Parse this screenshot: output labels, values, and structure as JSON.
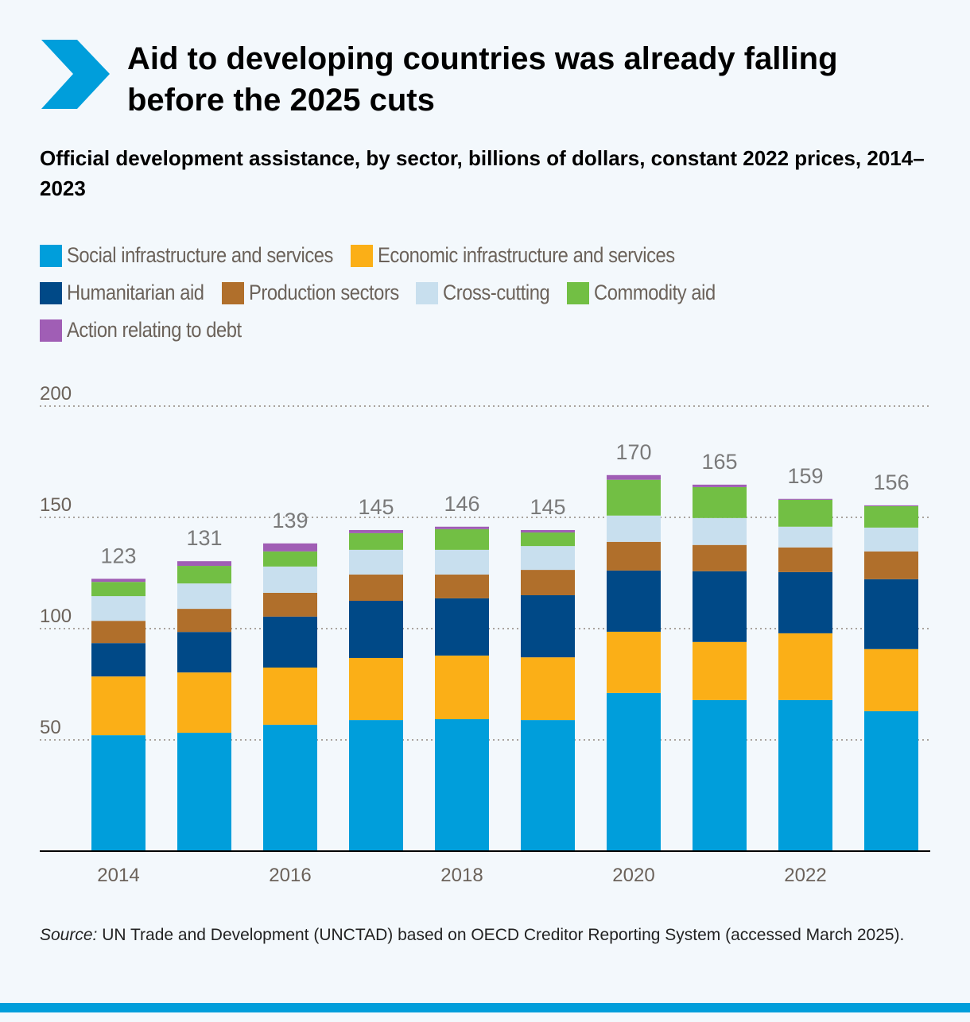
{
  "header": {
    "logo_icon": "chevron-right-icon",
    "title": "Aid to developing countries was already falling before the 2025 cuts",
    "subtitle": "Official development assistance, by sector, billions of dollars, constant 2022 prices, 2014–2023"
  },
  "colors": {
    "accent": "#009edb",
    "gridline": "#a9a39e",
    "axis_text": "#6b625a",
    "total_label": "#7a7a7a"
  },
  "legend": {
    "rows": [
      [
        0,
        1
      ],
      [
        2,
        3,
        4,
        5
      ],
      [
        6
      ]
    ]
  },
  "chart_data": {
    "type": "bar",
    "stacked": true,
    "title": "Official development assistance, by sector, billions of dollars, constant 2022 prices, 2014–2023",
    "xlabel": "",
    "ylabel": "",
    "ylim": [
      0,
      200
    ],
    "yticks": [
      50,
      100,
      150,
      200
    ],
    "grid": true,
    "legend_position": "top",
    "categories": [
      "2014",
      "2015",
      "2016",
      "2017",
      "2018",
      "2019",
      "2020",
      "2021",
      "2022",
      "2023"
    ],
    "xtick_labels": [
      "2014",
      "",
      "2016",
      "",
      "2018",
      "",
      "2020",
      "",
      "2022",
      ""
    ],
    "totals": [
      123,
      131,
      139,
      145,
      146,
      145,
      170,
      165,
      159,
      156
    ],
    "series": [
      {
        "name": "Social infrastructure and services",
        "color": "#009edb",
        "values": [
          52.1,
          53.2,
          56.8,
          58.9,
          59.3,
          58.9,
          71.1,
          67.9,
          67.9,
          62.9
        ]
      },
      {
        "name": "Economic infrastructure and services",
        "color": "#fbaf17",
        "values": [
          26.4,
          27.1,
          25.7,
          27.9,
          28.6,
          28.2,
          27.5,
          26.1,
          30.0,
          27.9
        ]
      },
      {
        "name": "Humanitarian aid",
        "color": "#004987",
        "values": [
          15.0,
          18.2,
          22.9,
          25.7,
          25.7,
          27.9,
          27.5,
          31.8,
          27.5,
          31.4
        ]
      },
      {
        "name": "Production sectors",
        "color": "#b06f2b",
        "values": [
          10.0,
          10.4,
          10.7,
          11.8,
          10.7,
          11.4,
          12.9,
          11.8,
          11.1,
          12.5
        ]
      },
      {
        "name": "Cross-cutting",
        "color": "#c8dfee",
        "values": [
          11.1,
          11.4,
          11.8,
          11.1,
          11.1,
          10.7,
          11.8,
          12.1,
          9.3,
          10.7
        ]
      },
      {
        "name": "Commodity aid",
        "color": "#72bf44",
        "values": [
          6.4,
          7.9,
          6.8,
          7.5,
          9.3,
          6.1,
          16.1,
          13.9,
          12.1,
          9.6
        ]
      },
      {
        "name": "Action relating to debt",
        "color": "#a05eb5",
        "values": [
          1.4,
          2.1,
          3.6,
          1.4,
          1.1,
          1.1,
          2.1,
          1.1,
          0.4,
          0.4
        ]
      }
    ]
  },
  "source": {
    "label": "Source:",
    "text": " UN Trade and Development (UNCTAD) based on OECD Creditor Reporting System (accessed March 2025)."
  }
}
